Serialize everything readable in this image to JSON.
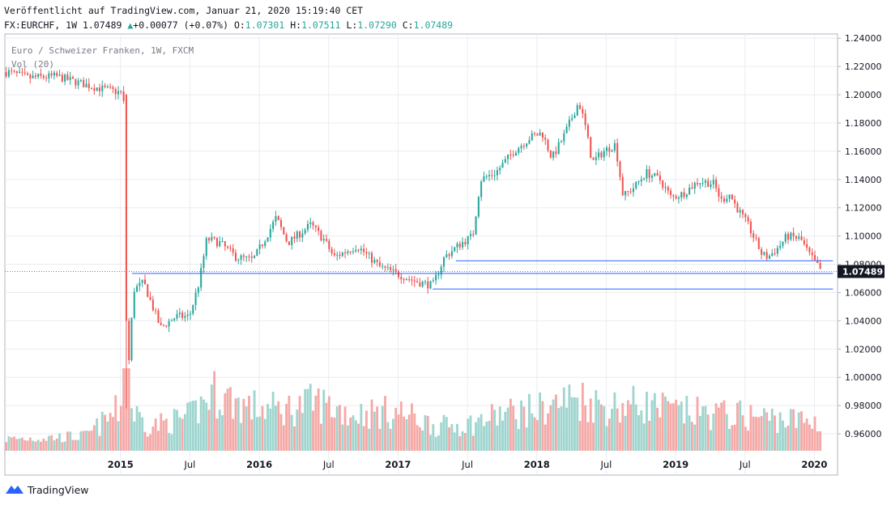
{
  "header": {
    "published_line": "Veröffentlicht auf TradingView.com, Januar 21, 2020 15:19:40 CET",
    "symbol_prefix": "FX:EURCHF, 1W",
    "last_value": "1.07489",
    "change": "+0.00077 (+0.07%)",
    "o_label": "O:",
    "o_value": "1.07301",
    "h_label": "H:",
    "h_value": "1.07511",
    "l_label": "L:",
    "l_value": "1.07290",
    "c_label": "C:",
    "c_value": "1.07489",
    "up_arrow": "▲"
  },
  "legend": {
    "series_title": "Euro / Schweizer Franken, 1W, FXCM",
    "volume_title": "Vol (20)"
  },
  "footer": {
    "brand": "TradingView",
    "logo_icon": "tradingview-logo-icon"
  },
  "colors": {
    "up": "#26a69a",
    "down": "#ef5350",
    "up_vol": "#9fd5cf",
    "down_vol": "#f4a9a7",
    "grid": "#e9ecf1",
    "hline": "#2962ff",
    "price_label_bg": "#131722"
  },
  "chart_data": {
    "type": "candlestick",
    "title": "Euro / Schweizer Franken, 1W, FXCM",
    "x_range": [
      "2014-03",
      "2020-03"
    ],
    "y_axis_ticks": [
      "1.24000",
      "1.22000",
      "1.20000",
      "1.18000",
      "1.16000",
      "1.14000",
      "1.12000",
      "1.10000",
      "1.08000",
      "1.06000",
      "1.04000",
      "1.02000",
      "1.00000",
      "0.98000",
      "0.96000"
    ],
    "y_range": [
      0.948,
      1.243
    ],
    "x_tick_labels": [
      {
        "label": "2015",
        "date": "2015-01"
      },
      {
        "label": "Jul",
        "date": "2015-07"
      },
      {
        "label": "2016",
        "date": "2016-01"
      },
      {
        "label": "Jul",
        "date": "2016-07"
      },
      {
        "label": "2017",
        "date": "2017-01"
      },
      {
        "label": "Jul",
        "date": "2017-07"
      },
      {
        "label": "2018",
        "date": "2018-01"
      },
      {
        "label": "Jul",
        "date": "2018-07"
      },
      {
        "label": "2019",
        "date": "2019-01"
      },
      {
        "label": "Jul",
        "date": "2019-07"
      },
      {
        "label": "2020",
        "date": "2020-01"
      }
    ],
    "last_price": "1.07489",
    "horizontal_lines": [
      {
        "value": 1.0825,
        "from": "2017-06",
        "to": "2020-01-20"
      },
      {
        "value": 1.0735,
        "from": "2015-02",
        "to": "2020-01-20"
      },
      {
        "value": 1.0625,
        "from": "2017-04",
        "to": "2020-01-20"
      }
    ],
    "price_path": [
      [
        "2014-03-10",
        1.216
      ],
      [
        "2014-05-01",
        1.212
      ],
      [
        "2014-07-15",
        1.213
      ],
      [
        "2014-10-15",
        1.206
      ],
      [
        "2015-01-09",
        1.201
      ],
      [
        "2015-01-15",
        0.978
      ],
      [
        "2015-02-05",
        1.062
      ],
      [
        "2015-03-01",
        1.067
      ],
      [
        "2015-04-15",
        1.035
      ],
      [
        "2015-05-25",
        1.043
      ],
      [
        "2015-06-30",
        1.043
      ],
      [
        "2015-07-25",
        1.067
      ],
      [
        "2015-08-15",
        1.098
      ],
      [
        "2015-09-20",
        1.095
      ],
      [
        "2015-11-01",
        1.085
      ],
      [
        "2015-12-15",
        1.083
      ],
      [
        "2016-01-20",
        1.1
      ],
      [
        "2016-02-15",
        1.113
      ],
      [
        "2016-03-15",
        1.095
      ],
      [
        "2016-05-15",
        1.108
      ],
      [
        "2016-06-20",
        1.097
      ],
      [
        "2016-07-15",
        1.085
      ],
      [
        "2016-09-15",
        1.093
      ],
      [
        "2016-11-15",
        1.078
      ],
      [
        "2017-01-01",
        1.073
      ],
      [
        "2017-02-15",
        1.068
      ],
      [
        "2017-04-01",
        1.065
      ],
      [
        "2017-05-01",
        1.085
      ],
      [
        "2017-06-15",
        1.095
      ],
      [
        "2017-07-15",
        1.1
      ],
      [
        "2017-08-05",
        1.14
      ],
      [
        "2017-09-15",
        1.145
      ],
      [
        "2017-11-01",
        1.16
      ],
      [
        "2017-12-15",
        1.17
      ],
      [
        "2018-01-15",
        1.173
      ],
      [
        "2018-02-10",
        1.155
      ],
      [
        "2018-03-10",
        1.17
      ],
      [
        "2018-04-20",
        1.195
      ],
      [
        "2018-05-05",
        1.18
      ],
      [
        "2018-05-25",
        1.152
      ],
      [
        "2018-06-25",
        1.16
      ],
      [
        "2018-07-25",
        1.165
      ],
      [
        "2018-08-15",
        1.128
      ],
      [
        "2018-09-15",
        1.135
      ],
      [
        "2018-10-15",
        1.145
      ],
      [
        "2018-11-20",
        1.14
      ],
      [
        "2018-12-20",
        1.127
      ],
      [
        "2019-01-20",
        1.13
      ],
      [
        "2019-03-01",
        1.139
      ],
      [
        "2019-04-10",
        1.137
      ],
      [
        "2019-04-30",
        1.125
      ],
      [
        "2019-05-20",
        1.13
      ],
      [
        "2019-06-10",
        1.12
      ],
      [
        "2019-07-10",
        1.107
      ],
      [
        "2019-08-15",
        1.087
      ],
      [
        "2019-09-01",
        1.085
      ],
      [
        "2019-10-01",
        1.093
      ],
      [
        "2019-10-20",
        1.1
      ],
      [
        "2019-11-25",
        1.098
      ],
      [
        "2019-12-20",
        1.086
      ],
      [
        "2020-01-20",
        1.0749
      ]
    ],
    "volume_profile": [
      [
        "2014-03-01",
        0.12
      ],
      [
        "2014-10-01",
        0.15
      ],
      [
        "2015-01-15",
        0.48
      ],
      [
        "2015-03-15",
        0.25
      ],
      [
        "2015-07-01",
        0.35
      ],
      [
        "2015-09-01",
        0.6
      ],
      [
        "2015-12-01",
        0.45
      ],
      [
        "2016-03-01",
        0.42
      ],
      [
        "2016-06-01",
        0.5
      ],
      [
        "2016-09-01",
        0.38
      ],
      [
        "2017-01-01",
        0.4
      ],
      [
        "2017-04-15",
        0.25
      ],
      [
        "2017-07-15",
        0.28
      ],
      [
        "2017-10-01",
        0.38
      ],
      [
        "2018-01-01",
        0.42
      ],
      [
        "2018-04-15",
        0.55
      ],
      [
        "2018-07-01",
        0.45
      ],
      [
        "2018-10-01",
        0.48
      ],
      [
        "2019-01-01",
        0.4
      ],
      [
        "2019-04-01",
        0.38
      ],
      [
        "2019-07-01",
        0.36
      ],
      [
        "2019-10-01",
        0.33
      ],
      [
        "2020-01-01",
        0.3
      ]
    ]
  }
}
